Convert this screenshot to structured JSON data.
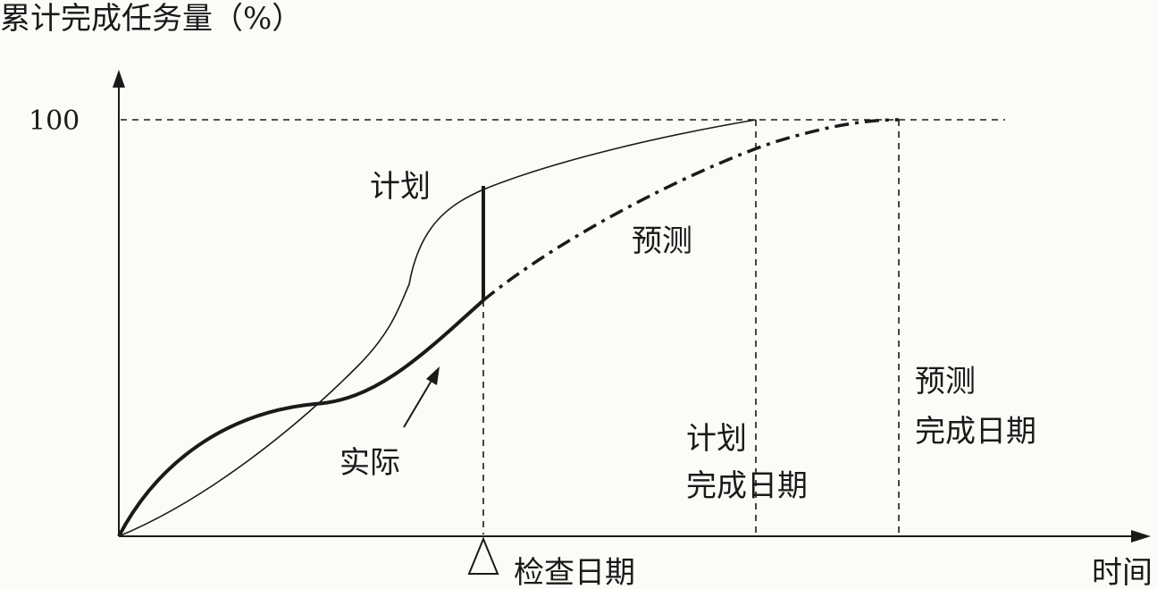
{
  "y_axis_title": "累计完成任务量（%）",
  "x_axis_title": "时间",
  "y_tick_label": "100",
  "curve_labels": {
    "plan": "计划",
    "forecast": "预测",
    "actual": "实际"
  },
  "markers": {
    "check_date": "检查日期",
    "plan_completion_line1": "计划",
    "plan_completion_line2": "完成日期",
    "forecast_completion_line1": "预测",
    "forecast_completion_line2": "完成日期"
  },
  "colors": {
    "ink": "#1a1a1a",
    "background": "#fbfbf8"
  }
}
